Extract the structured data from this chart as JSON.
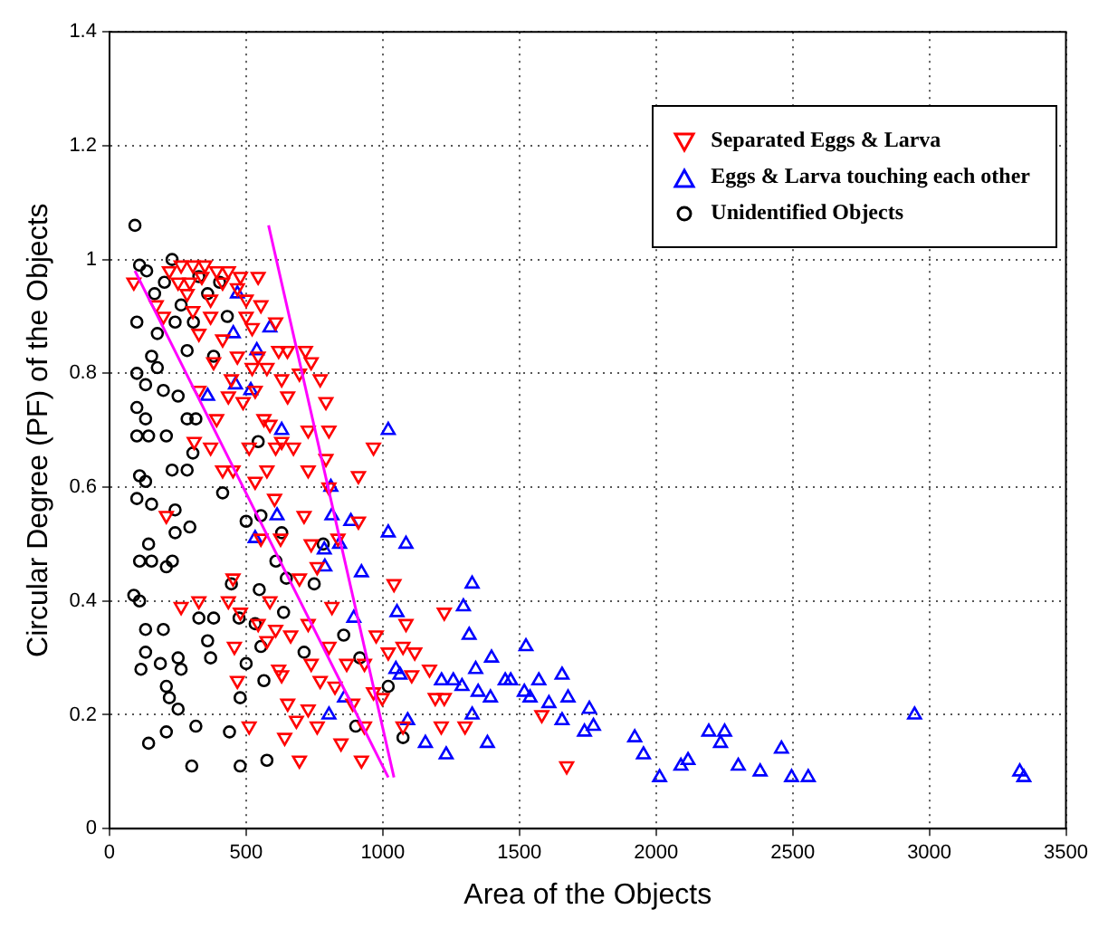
{
  "chart_data": {
    "type": "scatter",
    "xlabel": "Area of the Objects",
    "ylabel": "Circular Degree (PF) of the Objects",
    "xlim": [
      0,
      3500
    ],
    "xticks": [
      0,
      500,
      1000,
      1500,
      2000,
      2500,
      3000,
      3500
    ],
    "ylim": [
      0,
      1.4
    ],
    "yticks": [
      0,
      0.2,
      0.4,
      0.6,
      0.8,
      1,
      1.2,
      1.4
    ],
    "grid": true,
    "legend": "top right",
    "series": [
      {
        "name": "Separated Eggs & Larva",
        "color": "#ff0000",
        "marker": "triangle",
        "x": [
          219,
          262,
          305,
          349,
          392,
          435,
          479,
          544,
          251,
          294,
          338,
          414,
          468,
          284,
          370,
          500,
          554,
          89,
          171,
          305,
          197,
          500,
          608,
          370,
          522,
          327,
          414,
          619,
          544,
          651,
          468,
          717,
          381,
          522,
          576,
          695,
          771,
          630,
          446,
          738,
          327,
          435,
          533,
          652,
          792,
          489,
          392,
          565,
          587,
          727,
          630,
          310,
          370,
          511,
          608,
          673,
          803,
          966,
          792,
          414,
          576,
          452,
          911,
          533,
          727,
          803,
          208,
          712,
          911,
          604,
          554,
          738,
          626,
          836,
          760,
          452,
          695,
          1041,
          262,
          327,
          435,
          587,
          814,
          1225,
          544,
          608,
          727,
          479,
          663,
          1085,
          976,
          576,
          457,
          803,
          1074,
          1117,
          619,
          738,
          868,
          933,
          1020,
          1171,
          468,
          630,
          771,
          825,
          966,
          1106,
          1225,
          652,
          727,
          890,
          998,
          511,
          684,
          760,
          933,
          1214,
          1301,
          1074,
          641,
          847,
          695,
          922,
          1192,
          1582,
          1673
        ],
        "values": [
          0.98,
          0.99,
          0.99,
          0.99,
          0.98,
          0.98,
          0.97,
          0.97,
          0.96,
          0.96,
          0.97,
          0.96,
          0.95,
          0.94,
          0.93,
          0.93,
          0.92,
          0.96,
          0.92,
          0.91,
          0.9,
          0.9,
          0.89,
          0.9,
          0.88,
          0.87,
          0.86,
          0.84,
          0.83,
          0.84,
          0.83,
          0.84,
          0.82,
          0.81,
          0.81,
          0.8,
          0.79,
          0.79,
          0.79,
          0.82,
          0.77,
          0.76,
          0.77,
          0.76,
          0.75,
          0.75,
          0.72,
          0.72,
          0.71,
          0.7,
          0.68,
          0.68,
          0.67,
          0.67,
          0.67,
          0.67,
          0.7,
          0.67,
          0.65,
          0.63,
          0.63,
          0.63,
          0.62,
          0.61,
          0.63,
          0.6,
          0.55,
          0.55,
          0.54,
          0.58,
          0.51,
          0.5,
          0.51,
          0.51,
          0.46,
          0.44,
          0.44,
          0.43,
          0.39,
          0.4,
          0.4,
          0.4,
          0.39,
          0.38,
          0.36,
          0.35,
          0.36,
          0.38,
          0.34,
          0.36,
          0.34,
          0.33,
          0.32,
          0.32,
          0.32,
          0.31,
          0.28,
          0.29,
          0.29,
          0.29,
          0.31,
          0.28,
          0.26,
          0.27,
          0.26,
          0.25,
          0.24,
          0.27,
          0.23,
          0.22,
          0.21,
          0.22,
          0.23,
          0.18,
          0.19,
          0.18,
          0.18,
          0.18,
          0.18,
          0.18,
          0.16,
          0.15,
          0.12,
          0.12,
          0.23,
          0.2,
          0.11
        ]
      },
      {
        "name": "Eggs & Larva touching each other",
        "color": "#0000ff",
        "marker": "triangle",
        "x": [
          468,
          587,
          453,
          539,
          461,
          517,
          359,
          630,
          1020,
          810,
          814,
          613,
          883,
          533,
          1020,
          1085,
          842,
          786,
          922,
          788,
          1327,
          1295,
          1052,
          894,
          1316,
          1524,
          1398,
          1048,
          1340,
          1571,
          1215,
          1258,
          1448,
          1063,
          1290,
          1349,
          1518,
          1394,
          1539,
          860,
          1327,
          803,
          1091,
          1156,
          1232,
          1383,
          1468,
          1656,
          1608,
          1678,
          1756,
          1656,
          1771,
          1738,
          1922,
          1954,
          2013,
          2091,
          2117,
          2193,
          2251,
          2236,
          2301,
          2381,
          2459,
          2496,
          2557,
          2946,
          3331,
          3346
        ],
        "values": [
          0.94,
          0.88,
          0.87,
          0.84,
          0.78,
          0.77,
          0.76,
          0.7,
          0.7,
          0.6,
          0.55,
          0.55,
          0.54,
          0.51,
          0.52,
          0.5,
          0.5,
          0.49,
          0.45,
          0.46,
          0.43,
          0.39,
          0.38,
          0.37,
          0.34,
          0.32,
          0.3,
          0.28,
          0.28,
          0.26,
          0.26,
          0.26,
          0.26,
          0.27,
          0.25,
          0.24,
          0.24,
          0.23,
          0.23,
          0.23,
          0.2,
          0.2,
          0.19,
          0.15,
          0.13,
          0.15,
          0.26,
          0.27,
          0.22,
          0.23,
          0.21,
          0.19,
          0.18,
          0.17,
          0.16,
          0.13,
          0.09,
          0.11,
          0.12,
          0.17,
          0.17,
          0.15,
          0.11,
          0.1,
          0.14,
          0.09,
          0.09,
          0.2,
          0.1,
          0.09
        ]
      },
      {
        "name": "Unidentified Objects",
        "color": "#000000",
        "marker": "circle",
        "x": [
          93,
          110,
          136,
          229,
          201,
          165,
          262,
          327,
          359,
          403,
          431,
          307,
          240,
          100,
          175,
          284,
          381,
          154,
          100,
          175,
          132,
          197,
          100,
          251,
          284,
          316,
          132,
          100,
          143,
          208,
          305,
          544,
          229,
          284,
          110,
          132,
          100,
          154,
          240,
          414,
          500,
          240,
          294,
          554,
          143,
          110,
          154,
          230,
          609,
          208,
          630,
          782,
          446,
          647,
          749,
          548,
          89,
          110,
          132,
          197,
          327,
          381,
          474,
          533,
          637,
          857,
          359,
          132,
          186,
          251,
          115,
          262,
          370,
          500,
          554,
          712,
          916,
          565,
          208,
          478,
          1020,
          219,
          251,
          208,
          316,
          439,
          901,
          143,
          301,
          478,
          576,
          1074
        ],
        "values": [
          1.06,
          0.99,
          0.98,
          1.0,
          0.96,
          0.94,
          0.92,
          0.97,
          0.94,
          0.96,
          0.9,
          0.89,
          0.89,
          0.89,
          0.87,
          0.84,
          0.83,
          0.83,
          0.8,
          0.81,
          0.78,
          0.77,
          0.74,
          0.76,
          0.72,
          0.72,
          0.72,
          0.69,
          0.69,
          0.69,
          0.66,
          0.68,
          0.63,
          0.63,
          0.62,
          0.61,
          0.58,
          0.57,
          0.56,
          0.59,
          0.54,
          0.52,
          0.53,
          0.55,
          0.5,
          0.47,
          0.47,
          0.47,
          0.47,
          0.46,
          0.52,
          0.5,
          0.43,
          0.44,
          0.43,
          0.42,
          0.41,
          0.4,
          0.35,
          0.35,
          0.37,
          0.37,
          0.37,
          0.36,
          0.38,
          0.34,
          0.33,
          0.31,
          0.29,
          0.3,
          0.28,
          0.28,
          0.3,
          0.29,
          0.32,
          0.31,
          0.3,
          0.26,
          0.25,
          0.23,
          0.25,
          0.23,
          0.21,
          0.17,
          0.18,
          0.17,
          0.18,
          0.15,
          0.11,
          0.11,
          0.12,
          0.16
        ]
      },
      {
        "type": "line",
        "color": "#ff00ff",
        "marker": "none",
        "line_style": "solid",
        "x": [
          582,
          1041
        ],
        "values": [
          1.06,
          0.09
        ]
      },
      {
        "type": "line",
        "color": "#ff00ff",
        "marker": "none",
        "line_style": "solid",
        "x": [
          93,
          1020
        ],
        "values": [
          0.98,
          0.09
        ]
      }
    ]
  }
}
